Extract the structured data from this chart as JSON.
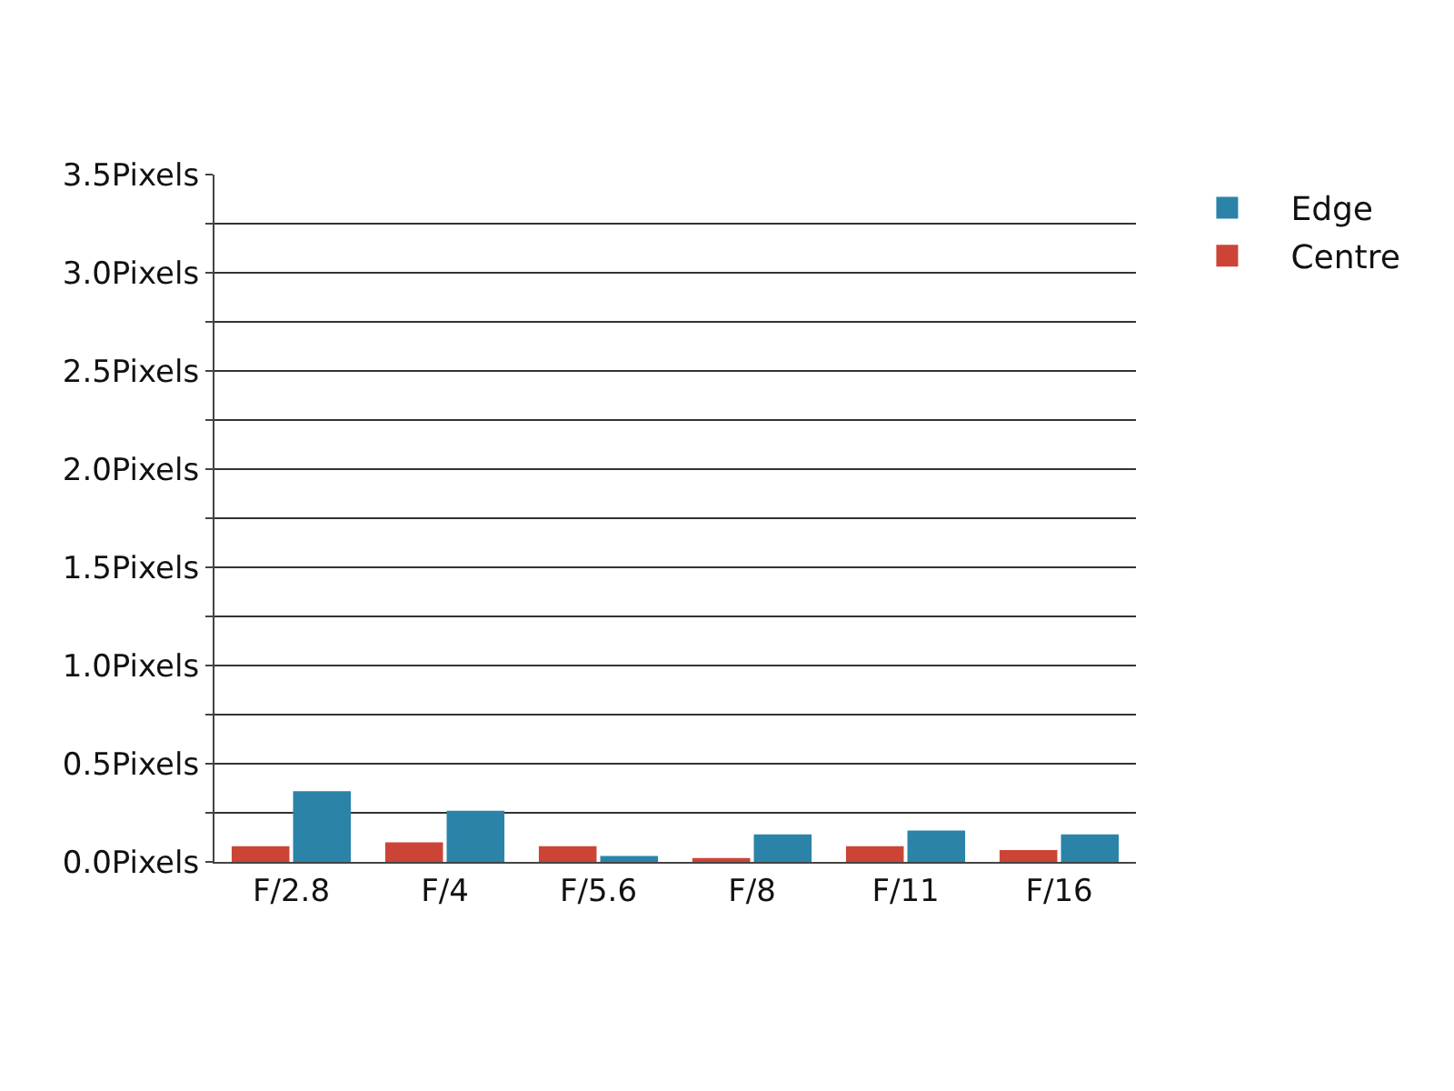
{
  "chart_data": {
    "type": "bar",
    "categories": [
      "F/2.8",
      "F/4",
      "F/5.6",
      "F/8",
      "F/11",
      "F/16"
    ],
    "series": [
      {
        "name": "Centre",
        "color": "#cc4436",
        "values": [
          0.08,
          0.1,
          0.08,
          0.02,
          0.08,
          0.06
        ]
      },
      {
        "name": "Edge",
        "color": "#2b83a8",
        "values": [
          0.36,
          0.26,
          0.03,
          0.14,
          0.16,
          0.14
        ]
      }
    ],
    "ylim": [
      0,
      3.5
    ],
    "yticks": [
      {
        "value": 0,
        "label": "0.0Pixels"
      },
      {
        "value": 0.25,
        "label": null
      },
      {
        "value": 0.5,
        "label": "0.5Pixels"
      },
      {
        "value": 0.75,
        "label": null
      },
      {
        "value": 1,
        "label": "1.0Pixels"
      },
      {
        "value": 1.25,
        "label": null
      },
      {
        "value": 1.5,
        "label": "1.5Pixels"
      },
      {
        "value": 1.75,
        "label": null
      },
      {
        "value": 2,
        "label": "2.0Pixels"
      },
      {
        "value": 2.25,
        "label": null
      },
      {
        "value": 2.5,
        "label": "2.5Pixels"
      },
      {
        "value": 2.75,
        "label": null
      },
      {
        "value": 3,
        "label": "3.0Pixels"
      },
      {
        "value": 3.25,
        "label": null
      },
      {
        "value": 3.5,
        "label": "3.5Pixels"
      }
    ],
    "grid": "y",
    "legend": "top right"
  }
}
